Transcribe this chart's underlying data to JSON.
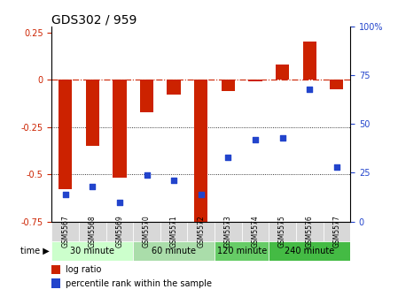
{
  "title": "GDS302 / 959",
  "samples": [
    "GSM5567",
    "GSM5568",
    "GSM5569",
    "GSM5570",
    "GSM5571",
    "GSM5572",
    "GSM5573",
    "GSM5574",
    "GSM5575",
    "GSM5576",
    "GSM5577"
  ],
  "log_ratio": [
    -0.58,
    -0.35,
    -0.52,
    -0.17,
    -0.08,
    -0.8,
    -0.06,
    -0.01,
    0.08,
    0.2,
    -0.05
  ],
  "percentile": [
    14,
    18,
    10,
    24,
    21,
    14,
    33,
    42,
    43,
    68,
    28
  ],
  "bar_color": "#cc2200",
  "dot_color": "#2244cc",
  "ref_line_color": "#cc2200",
  "grid_color": "#000000",
  "ylim_left": [
    -0.75,
    0.28
  ],
  "ylim_right": [
    0,
    100
  ],
  "yticks_left": [
    0.25,
    0,
    -0.25,
    -0.5,
    -0.75
  ],
  "yticks_right": [
    100,
    75,
    50,
    25,
    0
  ],
  "hlines": [
    -0.25,
    -0.5
  ],
  "time_groups": [
    {
      "label": "30 minute",
      "start": 0,
      "end": 2,
      "color": "#ccffcc"
    },
    {
      "label": "60 minute",
      "start": 3,
      "end": 5,
      "color": "#aaddaa"
    },
    {
      "label": "120 minute",
      "start": 6,
      "end": 7,
      "color": "#66cc66"
    },
    {
      "label": "240 minute",
      "start": 8,
      "end": 10,
      "color": "#44bb44"
    }
  ],
  "time_label": "time",
  "legend_bar_label": "log ratio",
  "legend_dot_label": "percentile rank within the sample",
  "background_color": "#ffffff",
  "plot_bg_color": "#ffffff",
  "tick_label_color_left": "#cc2200",
  "tick_label_color_right": "#2244cc"
}
